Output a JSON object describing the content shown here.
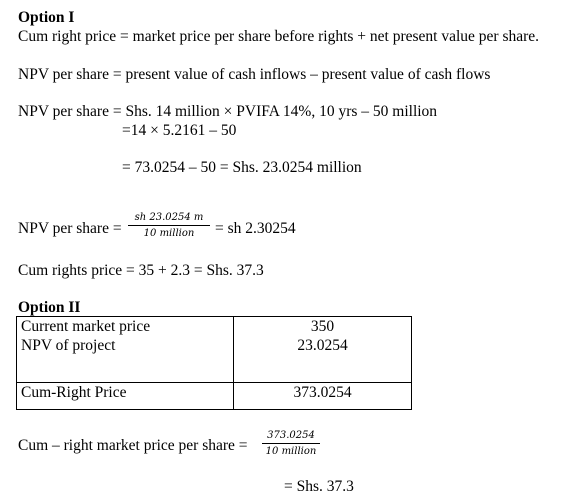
{
  "option1": {
    "heading": "Option I",
    "line_cum_right": "Cum right price = market price per share before rights + net present value per share.",
    "line_npv_def": "NPV per share = present value of cash inflows – present value of cash flows",
    "line_npv_calc": "NPV per share = Shs. 14 million × PVIFA 14%, 10 yrs – 50 million",
    "line_calc2": "=14 × 5.2161 – 50",
    "line_calc3": "= 73.0254 – 50 = Shs. 23.0254 million",
    "npv_frac_label": "NPV per share =",
    "npv_frac_num": "sh 23.0254 m",
    "npv_frac_den": "10 million",
    "npv_frac_result": "= sh 2.30254",
    "cum_rights_price": "Cum rights price = 35 + 2.3 = Shs. 37.3"
  },
  "option2": {
    "heading": "Option II",
    "table": {
      "row1_labels": [
        "Current market price",
        "NPV of project"
      ],
      "row1_values": [
        "350",
        "23.0254"
      ],
      "row2_label": "Cum-Right Price",
      "row2_value": "373.0254"
    },
    "cum_label": "Cum – right market price per share =",
    "cum_num": "373.0254",
    "cum_den": "10 million",
    "final": "= Shs. 37.3"
  }
}
